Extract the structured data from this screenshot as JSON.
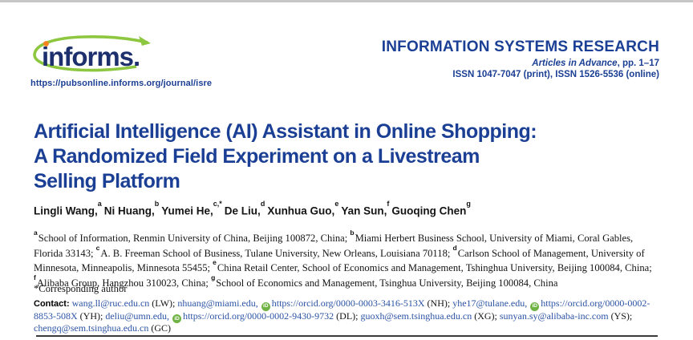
{
  "header": {
    "logo_text": "informs.",
    "logo_url": "https://pubsonline.informs.org/journal/isre",
    "journal": "INFORMATION SYSTEMS RESEARCH",
    "advance_italic": "Articles in Advance",
    "advance_rest": ", pp. 1–17",
    "issn_line": "ISSN 1047-7047 (print), ISSN 1526-5536 (online)"
  },
  "title": {
    "lines": [
      "Artificial Intelligence (AI) Assistant in Online Shopping:",
      "A Randomized Field Experiment on a Livestream",
      "Selling Platform"
    ]
  },
  "authors": {
    "list": [
      {
        "name": "Lingli Wang,",
        "sup": "a"
      },
      {
        "name": "Ni Huang,",
        "sup": "b"
      },
      {
        "name": "Yumei He,",
        "sup": "c,*"
      },
      {
        "name": "De Liu,",
        "sup": "d"
      },
      {
        "name": "Xunhua Guo,",
        "sup": "e"
      },
      {
        "name": "Yan Sun,",
        "sup": "f"
      },
      {
        "name": "Guoqing Chen",
        "sup": "g"
      }
    ]
  },
  "affiliations": {
    "segments": [
      {
        "sup": "a",
        "text": "School of Information, Renmin University of China, Beijing 100872, China; "
      },
      {
        "sup": "b",
        "text": "Miami Herbert Business School, University of Miami, Coral Gables, Florida 33143; "
      },
      {
        "sup": "c",
        "text": "A. B. Freeman School of Business, Tulane University, New Orleans, Louisiana 70118; "
      },
      {
        "sup": "d",
        "text": "Carlson School of Management, University of Minnesota, Minneapolis, Minnesota 55455; "
      },
      {
        "sup": "e",
        "text": "China Retail Center, School of Economics and Management, Tshinghua University, Beijing 100084, China; "
      },
      {
        "sup": "f",
        "text": "Alibaba Group, Hangzhou 310023, China; "
      },
      {
        "sup": "g",
        "text": "School of Economics and Management, Tsinghua University, Beijing 100084, China"
      }
    ],
    "corresponding": "*Corresponding author"
  },
  "contact": {
    "tokens": [
      {
        "type": "label",
        "text": "Contact:"
      },
      {
        "type": "text",
        "text": " "
      },
      {
        "type": "link",
        "text": "wang.ll@ruc.edu.cn"
      },
      {
        "type": "text",
        "text": " (LW); "
      },
      {
        "type": "link",
        "text": "nhuang@miami.edu,"
      },
      {
        "type": "text",
        "text": " "
      },
      {
        "type": "orcid"
      },
      {
        "type": "link",
        "text": "https://orcid.org/0000-0003-3416-513X"
      },
      {
        "type": "text",
        "text": " (NH); "
      },
      {
        "type": "link",
        "text": "yhe17@tulane.edu,"
      },
      {
        "type": "text",
        "text": " "
      },
      {
        "type": "orcid"
      },
      {
        "type": "link",
        "text": "https://orcid.org/0000-0002-8853-508X"
      },
      {
        "type": "text",
        "text": " (YH); "
      },
      {
        "type": "link",
        "text": "deliu@umn.edu,"
      },
      {
        "type": "text",
        "text": " "
      },
      {
        "type": "orcid"
      },
      {
        "type": "link",
        "text": "https://orcid.org/0000-0002-9430-9732"
      },
      {
        "type": "text",
        "text": " (DL); "
      },
      {
        "type": "link",
        "text": "guoxh@sem.tsinghua.edu.cn"
      },
      {
        "type": "text",
        "text": " (XG); "
      },
      {
        "type": "link",
        "text": "sunyan.sy@alibaba-inc.com"
      },
      {
        "type": "text",
        "text": " (YS); "
      },
      {
        "type": "link",
        "text": "chengq@sem.tsinghua.edu.cn"
      },
      {
        "type": "text",
        "text": " (GC)"
      }
    ]
  },
  "icons": {
    "orcid": {
      "name": "orcid-icon",
      "glyph": "iD"
    }
  },
  "colors": {
    "navy": "#1B3F94",
    "logo_navy": "#1E2F6E",
    "link_blue": "#2B53A5",
    "orcid_green": "#6FB344",
    "swoosh_green": "#8DC63F",
    "dot_orange": "#F58220",
    "rule_dark": "#3A3A3A",
    "topbar_gray": "#C6C6C6"
  }
}
